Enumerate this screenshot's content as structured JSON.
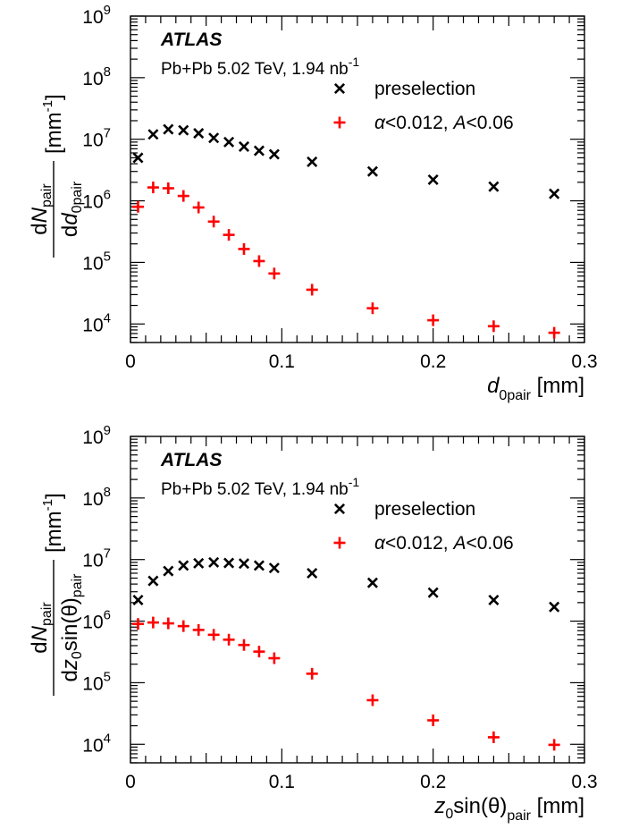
{
  "chart_data": [
    {
      "type": "scatter",
      "yscale": "log",
      "xlim": [
        0,
        0.3
      ],
      "ylim": [
        5000,
        1000000000
      ],
      "xticks": [
        "0",
        "0.1",
        "0.2",
        "0.3"
      ],
      "yticks": [
        {
          "base": "10",
          "exp": "4"
        },
        {
          "base": "10",
          "exp": "5"
        },
        {
          "base": "10",
          "exp": "6"
        },
        {
          "base": "10",
          "exp": "7"
        },
        {
          "base": "10",
          "exp": "8"
        },
        {
          "base": "10",
          "exp": "9"
        }
      ],
      "xlabel": {
        "main": "d",
        "sub": "0pair",
        "unit": " [mm]"
      },
      "ylabel": {
        "num_d": "d",
        "num_var": "N",
        "num_sub": "pair",
        "den_d": "d",
        "den_var": "d",
        "den_sub": "0pair",
        "unit": "[mm",
        "unit_exp": "-1",
        "unit_close": "]"
      },
      "experiment": "ATLAS",
      "dataset": {
        "text": "Pb+Pb 5.02 TeV, 1.94 nb",
        "exp": "-1"
      },
      "legend_position": "top-right",
      "series": [
        {
          "name": "preselection",
          "marker": "x",
          "color": "#000000",
          "x": [
            0.005,
            0.015,
            0.025,
            0.035,
            0.045,
            0.055,
            0.065,
            0.075,
            0.085,
            0.095,
            0.12,
            0.16,
            0.2,
            0.24,
            0.28
          ],
          "y": [
            5000000,
            12000000,
            14500000,
            14000000,
            12500000,
            10500000,
            9000000,
            7600000,
            6500000,
            5700000,
            4300000,
            3000000,
            2200000,
            1700000,
            1300000
          ]
        },
        {
          "name_parts": {
            "alpha": "α",
            "alpha_cut": "<0.012, ",
            "a": "A",
            "a_cut": "<0.06"
          },
          "marker": "plus",
          "color": "#ff0000",
          "x": [
            0.005,
            0.015,
            0.025,
            0.035,
            0.045,
            0.055,
            0.065,
            0.075,
            0.085,
            0.095,
            0.12,
            0.16,
            0.2,
            0.24,
            0.28
          ],
          "y": [
            800000,
            1650000,
            1600000,
            1200000,
            780000,
            460000,
            280000,
            165000,
            105000,
            66000,
            36000,
            18000,
            11500,
            9200,
            7200
          ]
        }
      ]
    },
    {
      "type": "scatter",
      "yscale": "log",
      "xlim": [
        0,
        0.3
      ],
      "ylim": [
        5000,
        1000000000
      ],
      "xticks": [
        "0",
        "0.1",
        "0.2",
        "0.3"
      ],
      "yticks": [
        {
          "base": "10",
          "exp": "4"
        },
        {
          "base": "10",
          "exp": "5"
        },
        {
          "base": "10",
          "exp": "6"
        },
        {
          "base": "10",
          "exp": "7"
        },
        {
          "base": "10",
          "exp": "8"
        },
        {
          "base": "10",
          "exp": "9"
        }
      ],
      "xlabel": {
        "main": "z",
        "sub0": "0",
        "rest": "sin(θ)",
        "sub": "pair",
        "unit": " [mm]"
      },
      "ylabel": {
        "num_d": "d",
        "num_var": "N",
        "num_sub": "pair",
        "den_d": "d",
        "den_var": "z",
        "den_sub0": "0",
        "den_rest": "sin(θ)",
        "den_sub": "pair",
        "unit": "[mm",
        "unit_exp": "-1",
        "unit_close": "]"
      },
      "experiment": "ATLAS",
      "dataset": {
        "text": "Pb+Pb 5.02 TeV, 1.94 nb",
        "exp": "-1"
      },
      "legend_position": "top-right",
      "series": [
        {
          "name": "preselection",
          "marker": "x",
          "color": "#000000",
          "x": [
            0.005,
            0.015,
            0.025,
            0.035,
            0.045,
            0.055,
            0.065,
            0.075,
            0.085,
            0.095,
            0.12,
            0.16,
            0.2,
            0.24,
            0.28
          ],
          "y": [
            2200000,
            4500000,
            6500000,
            8000000,
            8700000,
            9000000,
            8800000,
            8600000,
            8000000,
            7300000,
            6000000,
            4200000,
            2900000,
            2200000,
            1700000
          ]
        },
        {
          "name_parts": {
            "alpha": "α",
            "alpha_cut": "<0.012, ",
            "a": "A",
            "a_cut": "<0.06"
          },
          "marker": "plus",
          "color": "#ff0000",
          "x": [
            0.005,
            0.015,
            0.025,
            0.035,
            0.045,
            0.055,
            0.065,
            0.075,
            0.085,
            0.095,
            0.12,
            0.16,
            0.2,
            0.24,
            0.28
          ],
          "y": [
            900000,
            950000,
            920000,
            830000,
            720000,
            600000,
            500000,
            410000,
            320000,
            250000,
            140000,
            52000,
            24500,
            13000,
            9800
          ]
        }
      ]
    }
  ]
}
